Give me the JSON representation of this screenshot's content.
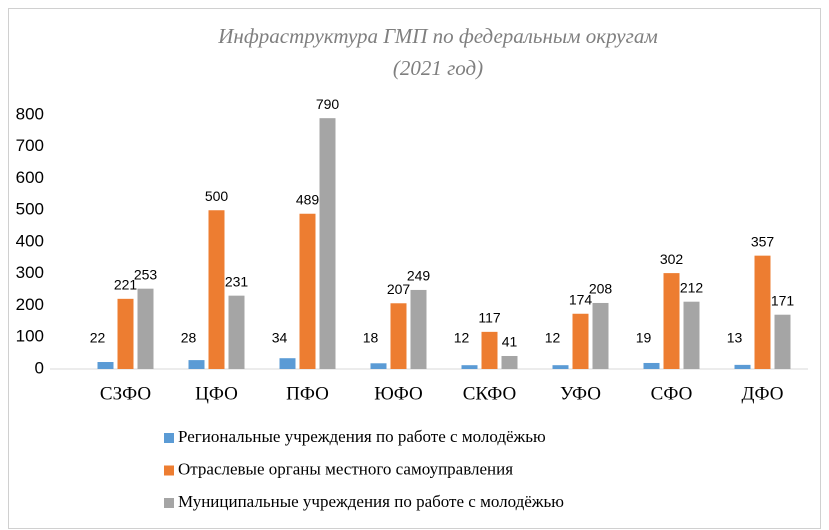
{
  "chart_data": {
    "type": "bar",
    "title": "Инфраструктура ГМП по федеральным округам",
    "subtitle": "(2021 год)",
    "categories": [
      "СЗФО",
      "ЦФО",
      "ПФО",
      "ЮФО",
      "СКФО",
      "УФО",
      "СФО",
      "ДФО"
    ],
    "series": [
      {
        "name": "Региональные учреждения по работе с молодёжью",
        "color": "#5b9bd5",
        "values": [
          22,
          28,
          34,
          18,
          12,
          12,
          19,
          13
        ]
      },
      {
        "name": "Отраслевые органы местного самоуправления",
        "color": "#ed7d31",
        "values": [
          221,
          500,
          489,
          207,
          117,
          174,
          302,
          357
        ]
      },
      {
        "name": "Муниципальные учреждения по работе с молодёжью",
        "color": "#a5a5a5",
        "values": [
          253,
          231,
          790,
          249,
          41,
          208,
          212,
          171
        ]
      }
    ],
    "ylim": [
      0,
      800
    ],
    "yticks": [
      0,
      100,
      200,
      300,
      400,
      500,
      600,
      700,
      800
    ],
    "grid": false,
    "legend": "bottom"
  }
}
